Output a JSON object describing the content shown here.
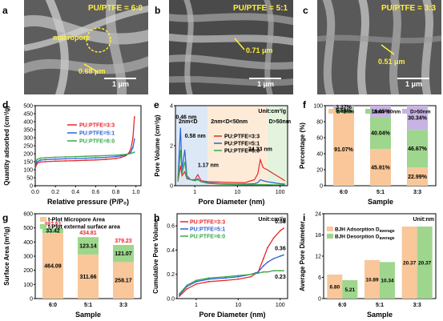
{
  "panels": {
    "a": {
      "label": "a",
      "title": "PU/PTFE = 6:0",
      "tag1": "macropore",
      "tag2": "0.68 μm",
      "scale": "1 μm"
    },
    "b": {
      "label": "b",
      "title": "PU/PTFE = 5:1",
      "tag1": "0.71 μm",
      "scale": "1 μm"
    },
    "c": {
      "label": "c",
      "title": "PU/PTFE = 3:3",
      "tag1": "0.51 μm",
      "scale": "1 μm"
    },
    "d": {
      "label": "d"
    },
    "e": {
      "label": "e"
    },
    "f": {
      "label": "f"
    },
    "g": {
      "label": "g"
    },
    "h": {
      "label": "h"
    },
    "i": {
      "label": "i"
    }
  },
  "colors": {
    "red": "#e8262a",
    "blue": "#2c62d8",
    "green": "#3aa84a",
    "orange": "#f9c79a",
    "lgreen": "#9ed68d",
    "purple": "#c7b4e3",
    "sem_yellow": "#ffef3a"
  },
  "chart_data": [
    {
      "id": "d",
      "type": "line",
      "xlabel": "Relative pressure (P/P₀)",
      "ylabel": "Quantity adsorbed (cm³/g)",
      "xlim": [
        0,
        1.05
      ],
      "ylim": [
        0,
        500
      ],
      "xticks": [
        "0.0",
        "0.2",
        "0.4",
        "0.6",
        "0.8",
        "1.0"
      ],
      "yticks": [
        "0",
        "50",
        "100",
        "150",
        "200",
        "250",
        "300",
        "350",
        "400",
        "450",
        "500"
      ],
      "legend": "center-right",
      "series": [
        {
          "name": "PU:PTFE=3:3",
          "color": "#e8262a",
          "x": [
            0.005,
            0.02,
            0.05,
            0.1,
            0.2,
            0.3,
            0.4,
            0.5,
            0.6,
            0.7,
            0.8,
            0.85,
            0.9,
            0.93,
            0.95,
            0.97,
            0.985
          ],
          "y": [
            120,
            140,
            148,
            150,
            153,
            155,
            157,
            159,
            161,
            164,
            170,
            176,
            188,
            205,
            232,
            300,
            430
          ]
        },
        {
          "name": "PU:PTFE=5:1",
          "color": "#2c62d8",
          "x": [
            0.005,
            0.02,
            0.05,
            0.1,
            0.2,
            0.3,
            0.4,
            0.5,
            0.6,
            0.7,
            0.8,
            0.85,
            0.9,
            0.93,
            0.95,
            0.97,
            0.985
          ],
          "y": [
            135,
            150,
            160,
            163,
            166,
            168,
            170,
            172,
            174,
            177,
            182,
            186,
            192,
            200,
            212,
            240,
            290
          ]
        },
        {
          "name": "PU:PTFE=6:0",
          "color": "#3aa84a",
          "x": [
            0.005,
            0.02,
            0.05,
            0.1,
            0.2,
            0.3,
            0.4,
            0.5,
            0.6,
            0.7,
            0.8,
            0.85,
            0.9,
            0.93,
            0.95,
            0.97,
            0.985
          ],
          "y": [
            150,
            165,
            172,
            175,
            178,
            180,
            182,
            184,
            186,
            188,
            191,
            193,
            196,
            199,
            202,
            206,
            210
          ]
        }
      ]
    },
    {
      "id": "e",
      "type": "line",
      "xlabel": "Pore Diameter (nm)",
      "ylabel": "Pore Volume (cm³/g)",
      "xscale": "log",
      "xlim": [
        0.35,
        150
      ],
      "ylim": [
        0,
        4
      ],
      "xticks": [
        "1",
        "10",
        "100"
      ],
      "yticks": [
        "0",
        "2",
        "4"
      ],
      "unit_note": "Unit:cm³/g",
      "regions": [
        "2nm<D",
        "2nm<D<50nm",
        "D>50nm"
      ],
      "annotations": [
        "0.46 nm",
        "0.58 nm",
        "1.17 nm",
        "34.33 nm"
      ],
      "series": [
        {
          "name": "PU:PTFE=3:3",
          "color": "#e8262a",
          "x": [
            0.4,
            0.46,
            0.5,
            0.58,
            0.65,
            0.8,
            1.0,
            1.17,
            1.4,
            2,
            4,
            8,
            15,
            25,
            30,
            34.33,
            40,
            50,
            70,
            100,
            130
          ],
          "y": [
            0.2,
            1.0,
            0.5,
            0.7,
            0.35,
            0.3,
            0.3,
            0.55,
            0.25,
            0.2,
            0.18,
            0.16,
            0.15,
            0.3,
            0.6,
            1.3,
            0.9,
            0.8,
            0.6,
            0.4,
            0.25
          ]
        },
        {
          "name": "PU:PTFE=5:1",
          "color": "#2c62d8",
          "x": [
            0.4,
            0.46,
            0.5,
            0.58,
            0.65,
            0.8,
            1.0,
            1.17,
            1.4,
            2,
            4,
            8,
            15,
            25,
            30,
            34.33,
            40,
            50,
            70,
            100,
            130
          ],
          "y": [
            0.3,
            2.9,
            0.8,
            1.8,
            0.5,
            0.3,
            0.25,
            0.35,
            0.2,
            0.15,
            0.1,
            0.08,
            0.08,
            0.1,
            0.15,
            0.3,
            0.25,
            0.2,
            0.15,
            0.1,
            0.08
          ]
        },
        {
          "name": "PU:PTFE=6:0",
          "color": "#3aa84a",
          "x": [
            0.4,
            0.46,
            0.5,
            0.58,
            0.65,
            0.8,
            1.0,
            1.17,
            1.4,
            2,
            4,
            8,
            15,
            25,
            30,
            34.33,
            40,
            50,
            70,
            100,
            130
          ],
          "y": [
            0.2,
            1.8,
            0.6,
            1.2,
            0.4,
            0.3,
            0.25,
            0.3,
            0.2,
            0.12,
            0.08,
            0.06,
            0.05,
            0.05,
            0.05,
            0.06,
            0.05,
            0.05,
            0.04,
            0.04,
            0.04
          ]
        }
      ]
    },
    {
      "id": "f",
      "type": "bar",
      "stacked": true,
      "xlabel": "Sample",
      "ylabel": "Percentage (%)",
      "categories": [
        "6:0",
        "5:1",
        "3:3"
      ],
      "ylim": [
        0,
        100
      ],
      "yticks": [
        "0",
        "20",
        "40",
        "60",
        "80",
        "100"
      ],
      "legend_entries": [
        "D<2nm",
        "2nm~50nm",
        "D>50nm"
      ],
      "series": [
        {
          "name": "D<2nm",
          "color": "#f9c79a",
          "values": [
            91.07,
            45.91,
            22.99
          ],
          "labels": [
            "91.07%",
            "45.91%",
            "22.99%"
          ]
        },
        {
          "name": "2nm~50nm",
          "color": "#9ed68d",
          "values": [
            5.56,
            40.04,
            46.67
          ],
          "labels": [
            "5.56%",
            "40.04%",
            "46.67%"
          ]
        },
        {
          "name": "D>50nm",
          "color": "#c7b4e3",
          "values": [
            3.37,
            14.05,
            30.34
          ],
          "labels": [
            "3.37%",
            "14.05%",
            "30.34%"
          ]
        }
      ]
    },
    {
      "id": "g",
      "type": "bar",
      "stacked": true,
      "xlabel": "Sample",
      "ylabel": "Surface Area (m²/g)",
      "categories": [
        "6:0",
        "5:1",
        "3:3"
      ],
      "ylim": [
        0,
        600
      ],
      "yticks": [
        "0",
        "100",
        "200",
        "300",
        "400",
        "500",
        "600"
      ],
      "totals": [
        "497.51",
        "434.81",
        "379.23"
      ],
      "series": [
        {
          "name": "t-Plot Micropore Area",
          "color": "#f9c79a",
          "values": [
            464.09,
            311.66,
            258.17
          ],
          "labels": [
            "464.09",
            "311.66",
            "258.17"
          ]
        },
        {
          "name": "t-Plot external surface area",
          "color": "#9ed68d",
          "values": [
            33.42,
            123.14,
            121.07
          ],
          "labels": [
            "33.42",
            "123.14",
            "121.07"
          ]
        }
      ]
    },
    {
      "id": "h",
      "type": "line",
      "xlabel": "Pore Diameter (nm)",
      "ylabel": "Cumulative Pore Volume",
      "xscale": "log",
      "xlim": [
        0.35,
        150
      ],
      "ylim": [
        0,
        0.7
      ],
      "xticks": [
        "1",
        "10",
        "100"
      ],
      "yticks": [
        "0.0",
        "0.2",
        "0.4",
        "0.6"
      ],
      "unit_note": "Unit:cm³/g",
      "end_labels": [
        "0.58",
        "0.36",
        "0.23"
      ],
      "series": [
        {
          "name": "PU:PTFE=3:3",
          "color": "#e8262a",
          "x": [
            0.4,
            0.6,
            1,
            2,
            5,
            10,
            20,
            30,
            40,
            50,
            70,
            100,
            120
          ],
          "y": [
            0.02,
            0.08,
            0.12,
            0.14,
            0.15,
            0.16,
            0.18,
            0.22,
            0.33,
            0.42,
            0.5,
            0.56,
            0.58
          ]
        },
        {
          "name": "PU:PTFE=5:1",
          "color": "#2c62d8",
          "x": [
            0.4,
            0.6,
            1,
            2,
            5,
            10,
            20,
            30,
            40,
            50,
            70,
            100,
            120
          ],
          "y": [
            0.03,
            0.1,
            0.14,
            0.16,
            0.17,
            0.18,
            0.2,
            0.22,
            0.27,
            0.3,
            0.33,
            0.35,
            0.36
          ]
        },
        {
          "name": "PU:PTFE=6:0",
          "color": "#3aa84a",
          "x": [
            0.4,
            0.6,
            1,
            2,
            5,
            10,
            20,
            30,
            40,
            50,
            70,
            100,
            120
          ],
          "y": [
            0.04,
            0.11,
            0.15,
            0.17,
            0.18,
            0.19,
            0.2,
            0.21,
            0.22,
            0.22,
            0.23,
            0.23,
            0.23
          ]
        }
      ]
    },
    {
      "id": "i",
      "type": "bar",
      "xlabel": "Sample",
      "ylabel": "Average Pore Diameter",
      "categories": [
        "6:0",
        "5:1",
        "3:3"
      ],
      "ylim": [
        0,
        24
      ],
      "yticks": [
        "0",
        "6",
        "12",
        "18",
        "24"
      ],
      "unit_note": "Unit:nm",
      "series": [
        {
          "name": "BJH Adsorption D",
          "name_sub": "average",
          "color": "#f9c79a",
          "values": [
            6.8,
            10.89,
            20.37
          ],
          "labels": [
            "6.80",
            "10.89",
            "20.37"
          ]
        },
        {
          "name": "BJH Desorption D",
          "name_sub": "average",
          "color": "#9ed68d",
          "values": [
            5.21,
            10.34,
            20.37
          ],
          "labels": [
            "5.21",
            "10.34",
            "20.37"
          ]
        }
      ]
    }
  ]
}
